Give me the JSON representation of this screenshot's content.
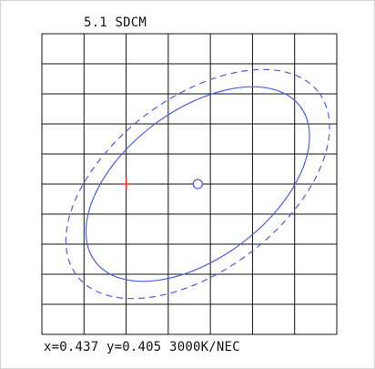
{
  "title": "5.1 SDCM",
  "readout": "x=0.437 y=0.405 3000K/NEC",
  "chart_data": {
    "type": "scatter",
    "title": "5.1 SDCM",
    "xlabel": "",
    "ylabel": "",
    "grid": true,
    "colors": {
      "grid": "#111111",
      "ellipse": "#4b5de8",
      "measured_point": "#e02020"
    },
    "grid_divisions": {
      "columns": 7,
      "rows": 10
    },
    "center_marker": {
      "shape": "circle",
      "x_div": 3.7,
      "y_div": 5.0
    },
    "measured_marker": {
      "shape": "cross",
      "x_div": 2.0,
      "y_div": 5.0
    },
    "ellipses": [
      {
        "style": "solid",
        "center_div": [
          3.7,
          5.0
        ],
        "semi_axes_div": [
          3.05,
          1.75
        ],
        "rotation_deg": -37
      },
      {
        "style": "dashed",
        "center_div": [
          3.7,
          5.0
        ],
        "semi_axes_div": [
          3.6,
          2.05
        ],
        "rotation_deg": -37
      }
    ]
  }
}
